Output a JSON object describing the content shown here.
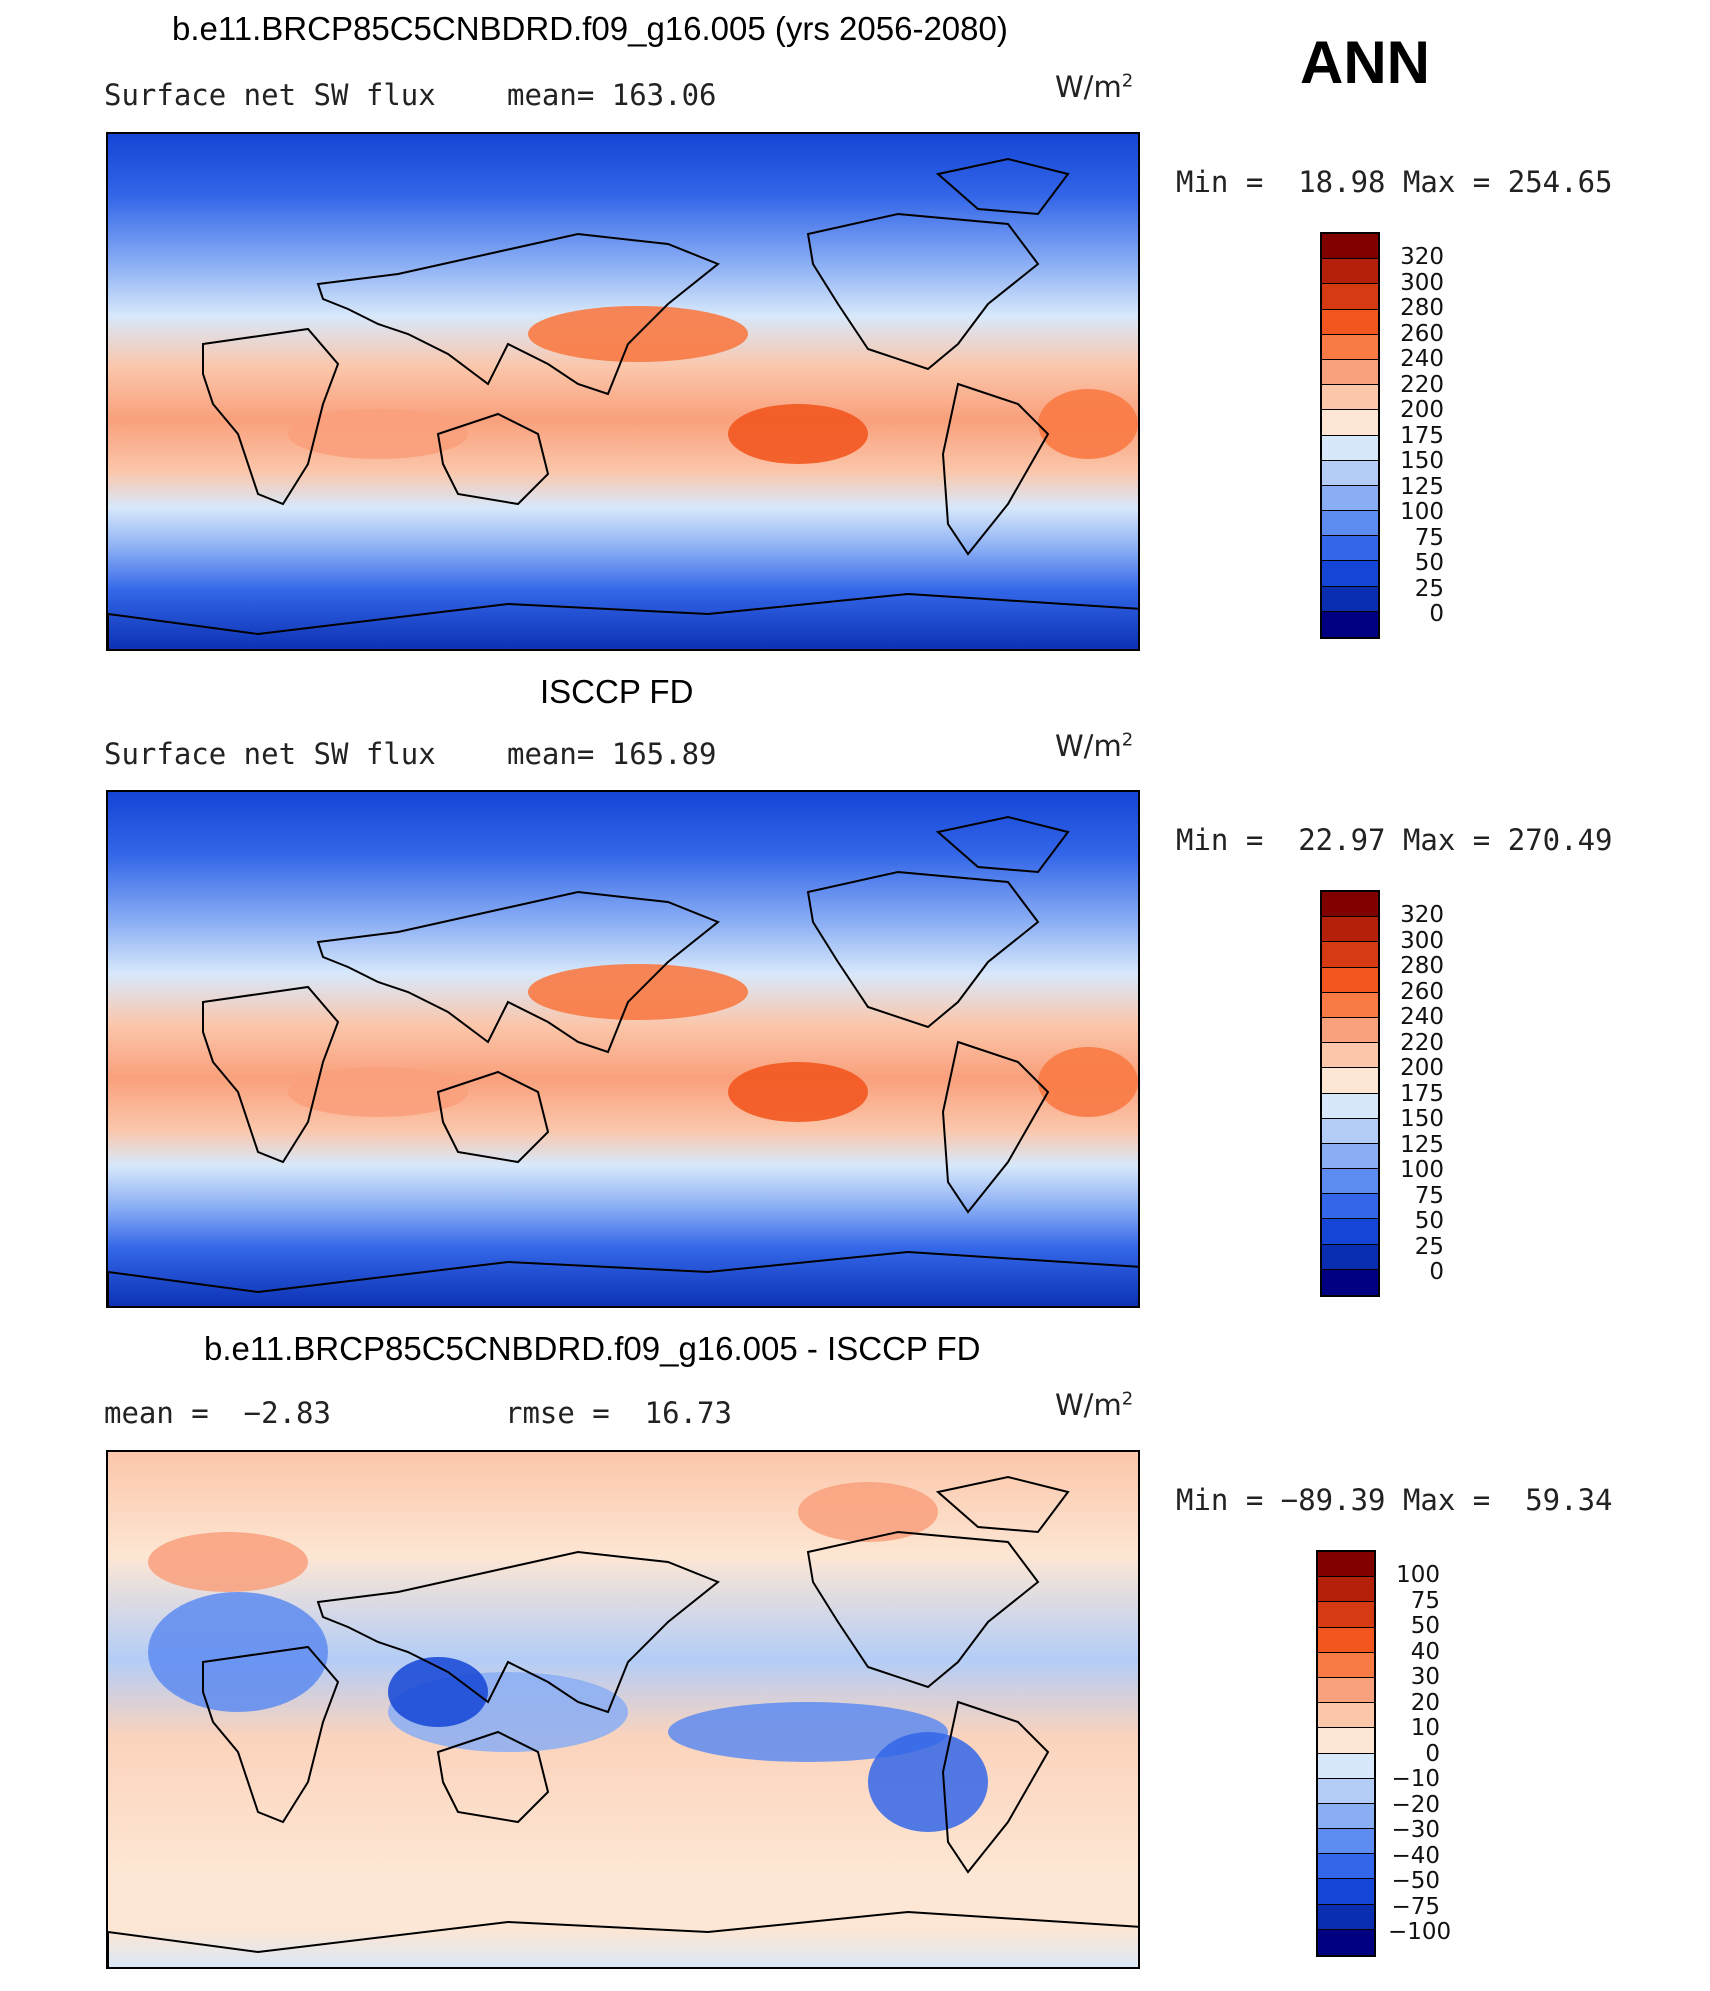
{
  "season": "ANN",
  "panels": [
    {
      "title": "b.e11.BRCP85C5CNBDRD.f09_g16.005 (yrs 2056-2080)",
      "left_text": "Surface net SW flux",
      "mid_text": "mean= 163.06",
      "units": "W/m",
      "units_sup": "2",
      "minmax_text": "Min =  18.98 Max = 254.65",
      "map_type": "absolute",
      "colorbar_ticks": [
        "320",
        "300",
        "280",
        "260",
        "240",
        "220",
        "200",
        "175",
        "150",
        "125",
        "100",
        "75",
        "50",
        "25",
        "0"
      ]
    },
    {
      "title": "ISCCP FD",
      "left_text": "Surface net SW flux",
      "mid_text": "mean= 165.89",
      "units": "W/m",
      "units_sup": "2",
      "minmax_text": "Min =  22.97 Max = 270.49",
      "map_type": "absolute",
      "colorbar_ticks": [
        "320",
        "300",
        "280",
        "260",
        "240",
        "220",
        "200",
        "175",
        "150",
        "125",
        "100",
        "75",
        "50",
        "25",
        "0"
      ]
    },
    {
      "title": "b.e11.BRCP85C5CNBDRD.f09_g16.005 - ISCCP FD",
      "left_text": "mean =  −2.83",
      "mid_text": "rmse =  16.73",
      "units": "W/m",
      "units_sup": "2",
      "minmax_text": "Min = −89.39 Max =  59.34",
      "map_type": "difference",
      "colorbar_ticks": [
        "100",
        "75",
        "50",
        "40",
        "30",
        "20",
        "10",
        "0",
        "−10",
        "−20",
        "−30",
        "−40",
        "−50",
        "−75",
        "−100"
      ]
    }
  ],
  "colors": {
    "palette": [
      "#800000",
      "#b5200a",
      "#d63a12",
      "#f2561f",
      "#f87a44",
      "#f9a07c",
      "#fbc6aa",
      "#fde6d3",
      "#d7e8fb",
      "#b3cdf7",
      "#8aaef4",
      "#5d8bf0",
      "#3366e8",
      "#1445d6",
      "#0a2eb0",
      "#000080"
    ]
  }
}
